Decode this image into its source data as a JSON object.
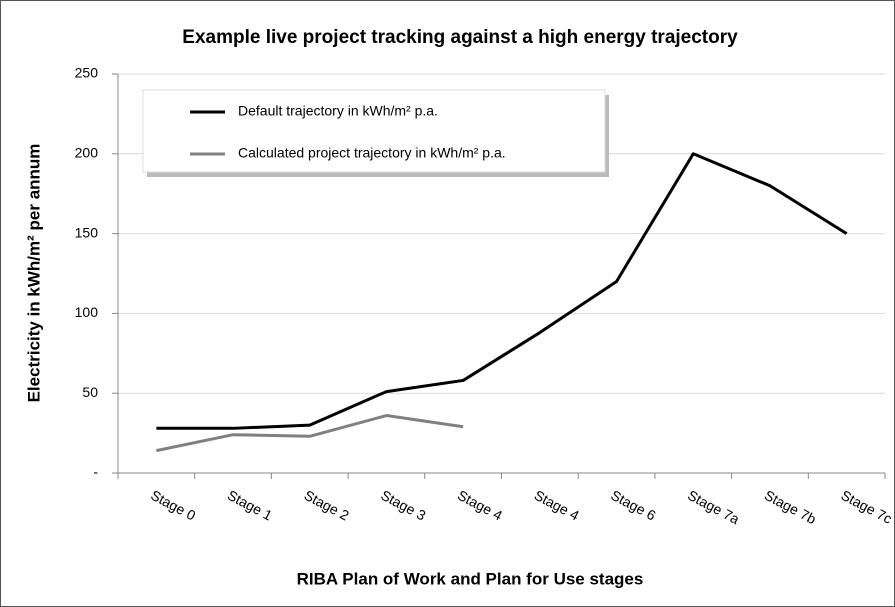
{
  "chart_data": {
    "type": "line",
    "title": "Example live project tracking against a high energy trajectory",
    "x_label": "RIBA Plan of Work and Plan for Use stages",
    "y_label": "Electricity in kWh/m² per annum",
    "categories": [
      "Stage 0",
      "Stage 1",
      "Stage 2",
      "Stage 3",
      "Stage 4",
      "Stage 4",
      "Stage 6",
      "Stage 7a",
      "Stage 7b",
      "Stage 7c"
    ],
    "series": [
      {
        "name": "Default trajectory in kWh/m² p.a.",
        "color": "#000000",
        "values": [
          28,
          28,
          30,
          51,
          58,
          88,
          120,
          200,
          180,
          150
        ]
      },
      {
        "name": "Calculated project trajectory in kWh/m² p.a.",
        "color": "#808080",
        "values": [
          14,
          24,
          23,
          36,
          29,
          null,
          null,
          null,
          null,
          null
        ]
      }
    ],
    "ylim": [
      0,
      250
    ],
    "yticks": [
      {
        "value": 0,
        "label": "-"
      },
      50,
      100,
      150,
      200,
      250
    ],
    "grid": true,
    "legend": "top-left"
  }
}
